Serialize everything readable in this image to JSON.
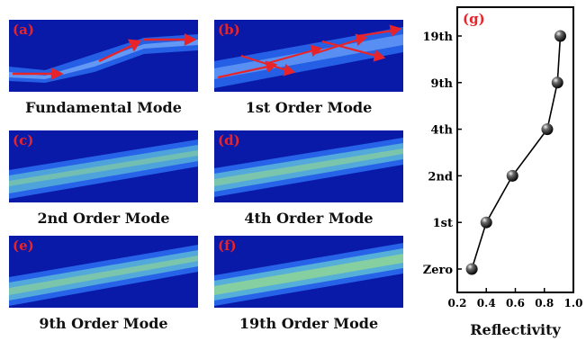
{
  "panels": [
    {
      "label": "(a)",
      "caption": "Fundamental Mode"
    },
    {
      "label": "(b)",
      "caption": "1st Order Mode"
    },
    {
      "label": "(c)",
      "caption": "2nd Order Mode"
    },
    {
      "label": "(d)",
      "caption": "4th Order Mode"
    },
    {
      "label": "(e)",
      "caption": "9th Order Mode"
    },
    {
      "label": "(f)",
      "caption": "19th Order Mode"
    }
  ],
  "colors": {
    "background": "#0a1aa8",
    "band_low": "#2a6cf0",
    "band_high": "#b8f06a",
    "arrow": "#e8242a",
    "label": "#e8242a"
  },
  "chart_data": {
    "type": "line",
    "label": "(g)",
    "xlabel": "Reflectivity",
    "ylabel": "",
    "xlim": [
      0.2,
      1.0
    ],
    "xticks": [
      "0.2",
      "0.4",
      "0.6",
      "0.8",
      "1.0"
    ],
    "categories": [
      "Zero",
      "1st",
      "2nd",
      "4th",
      "9th",
      "19th"
    ],
    "x": [
      0.3,
      0.4,
      0.58,
      0.82,
      0.89,
      0.91
    ],
    "marker": "sphere",
    "grid": false
  }
}
